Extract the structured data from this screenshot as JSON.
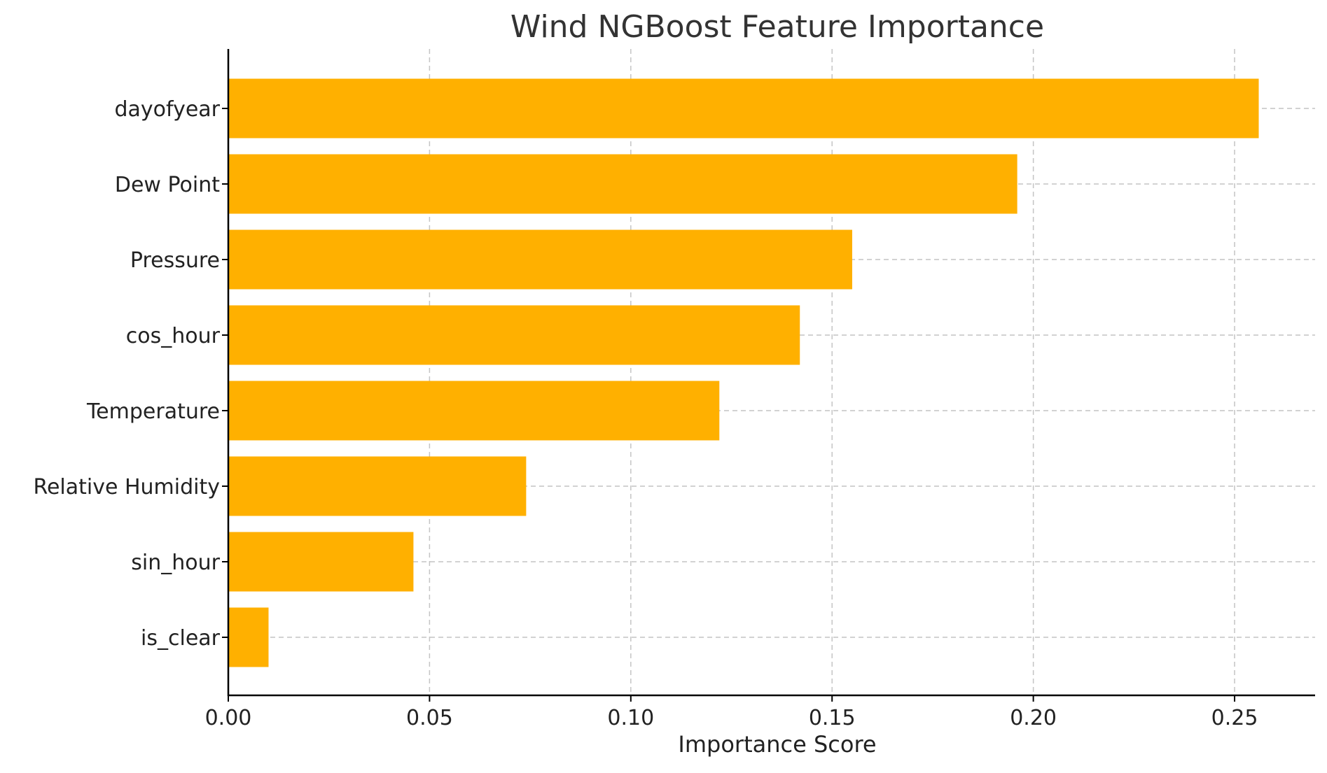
{
  "chart_data": {
    "type": "bar",
    "orientation": "horizontal",
    "title": "Wind NGBoost Feature Importance",
    "xlabel": "Importance Score",
    "ylabel": "",
    "categories": [
      "dayofyear",
      "Dew Point",
      "Pressure",
      "cos_hour",
      "Temperature",
      "Relative Humidity",
      "sin_hour",
      "is_clear"
    ],
    "values": [
      0.256,
      0.196,
      0.155,
      0.142,
      0.122,
      0.074,
      0.046,
      0.01
    ],
    "xlim": [
      0,
      0.27
    ],
    "xticks": [
      0.0,
      0.05,
      0.1,
      0.15,
      0.2,
      0.25
    ],
    "xtick_labels": [
      "0.00",
      "0.05",
      "0.10",
      "0.15",
      "0.20",
      "0.25"
    ],
    "bar_color": "#FFB000",
    "grid": true,
    "grid_style": "dashed",
    "legend": "none"
  }
}
